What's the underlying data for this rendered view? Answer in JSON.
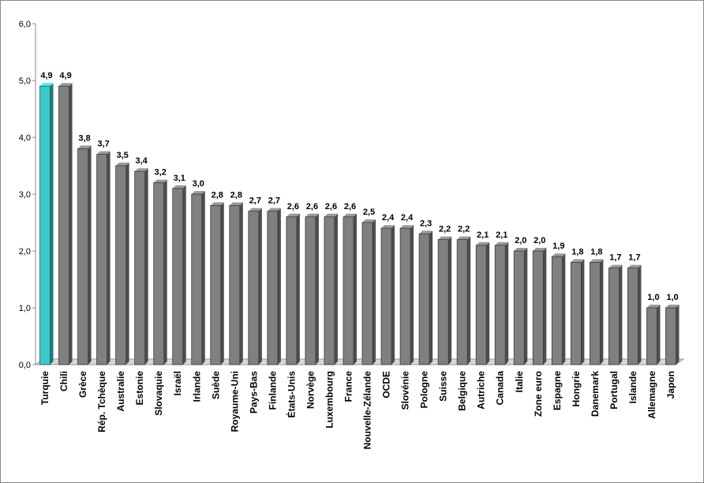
{
  "chart_data": {
    "type": "bar",
    "categories": [
      "Turquie",
      "Chili",
      "Grèce",
      "Rép. Tchèque",
      "Australie",
      "Estonie",
      "Slovaquie",
      "Israël",
      "Irlande",
      "Suède",
      "Royaume-Uni",
      "Pays-Bas",
      "Finlande",
      "États-Unis",
      "Norvège",
      "Luxembourg",
      "France",
      "Nouvelle-Zélande",
      "OCDE",
      "Slovénie",
      "Pologne",
      "Suisse",
      "Belgique",
      "Autriche",
      "Canada",
      "Italie",
      "Zone euro",
      "Espagne",
      "Hongrie",
      "Danemark",
      "Portugal",
      "Islande",
      "Allemagne",
      "Japon"
    ],
    "values": [
      4.9,
      4.9,
      3.8,
      3.7,
      3.5,
      3.4,
      3.2,
      3.1,
      3.0,
      2.8,
      2.8,
      2.7,
      2.7,
      2.6,
      2.6,
      2.6,
      2.6,
      2.5,
      2.4,
      2.4,
      2.3,
      2.2,
      2.2,
      2.1,
      2.1,
      2.0,
      2.0,
      1.9,
      1.8,
      1.8,
      1.7,
      1.7,
      1.0,
      1.0
    ],
    "value_labels": [
      "4,9",
      "4,9",
      "3,8",
      "3,7",
      "3,5",
      "3,4",
      "3,2",
      "3,1",
      "3,0",
      "2,8",
      "2,8",
      "2,7",
      "2,7",
      "2,6",
      "2,6",
      "2,6",
      "2,6",
      "2,5",
      "2,4",
      "2,4",
      "2,3",
      "2,2",
      "2,2",
      "2,1",
      "2,1",
      "2,0",
      "2,0",
      "1,9",
      "1,8",
      "1,8",
      "1,7",
      "1,7",
      "1,0",
      "1,0"
    ],
    "colors": [
      "#3cc8c8",
      "#808080",
      "#808080",
      "#808080",
      "#808080",
      "#808080",
      "#808080",
      "#808080",
      "#808080",
      "#808080",
      "#808080",
      "#808080",
      "#808080",
      "#808080",
      "#808080",
      "#808080",
      "#808080",
      "#808080",
      "#808080",
      "#808080",
      "#808080",
      "#808080",
      "#808080",
      "#808080",
      "#808080",
      "#808080",
      "#808080",
      "#808080",
      "#808080",
      "#808080",
      "#808080",
      "#808080",
      "#808080",
      "#808080"
    ],
    "ylim": [
      0,
      6
    ],
    "yticks": [
      {
        "value": 0,
        "label": "0,0"
      },
      {
        "value": 1,
        "label": "1,0"
      },
      {
        "value": 2,
        "label": "2,0"
      },
      {
        "value": 3,
        "label": "3,0"
      },
      {
        "value": 4,
        "label": "4,0"
      },
      {
        "value": 5,
        "label": "5,0"
      },
      {
        "value": 6,
        "label": "6,0"
      }
    ]
  }
}
